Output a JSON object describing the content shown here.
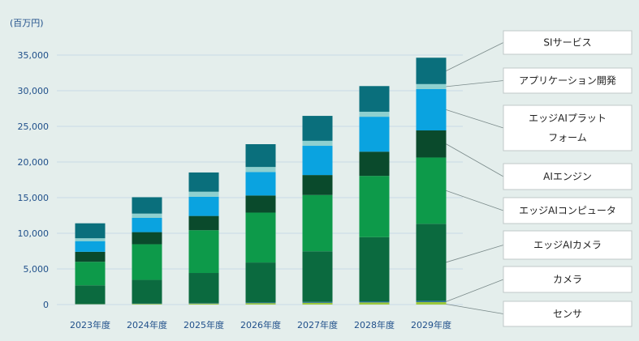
{
  "chart_data": {
    "type": "bar",
    "stacked": true,
    "unit_label": "(百万円)",
    "ylim": [
      0,
      35000
    ],
    "yticks": [
      0,
      5000,
      10000,
      15000,
      20000,
      25000,
      30000,
      35000
    ],
    "ytick_labels": [
      "0",
      "5,000",
      "10,000",
      "15,000",
      "20,000",
      "25,000",
      "30,000",
      "35,000"
    ],
    "categories": [
      "2023年度",
      "2024年度",
      "2025年度",
      "2026年度",
      "2027年度",
      "2028年度",
      "2029年度"
    ],
    "series": [
      {
        "name": "センサ",
        "color": "#9cc83c",
        "values": [
          50,
          100,
          150,
          200,
          250,
          300,
          350
        ]
      },
      {
        "name": "カメラ",
        "color": "#1e6b96",
        "values": [
          50,
          60,
          80,
          100,
          120,
          150,
          180
        ]
      },
      {
        "name": "エッジAIカメラ",
        "color": "#0b6a3f",
        "values": [
          2600,
          3300,
          4200,
          5600,
          7100,
          9000,
          10800
        ]
      },
      {
        "name": "エッジAIコンピュータ",
        "color": "#0d9a4a",
        "values": [
          3300,
          5000,
          6000,
          7000,
          7900,
          8600,
          9300
        ]
      },
      {
        "name": "AIエンジン",
        "color": "#0a4a2c",
        "values": [
          1400,
          1700,
          2000,
          2400,
          2800,
          3400,
          3800
        ]
      },
      {
        "name": "エッジAIプラットフォーム",
        "color": "#0aa3e0",
        "values": [
          1500,
          2000,
          2700,
          3300,
          4100,
          4900,
          5800
        ]
      },
      {
        "name": "アプリケーション開発",
        "color": "#8ed0cf",
        "values": [
          400,
          600,
          700,
          700,
          700,
          700,
          700
        ]
      },
      {
        "name": "SIサービス",
        "color": "#0a6f7c",
        "values": [
          2100,
          2300,
          2700,
          3200,
          3500,
          3600,
          3700
        ]
      }
    ],
    "legend_order_top_to_bottom": [
      "SIサービス",
      "アプリケーション開発",
      "エッジAIプラットフォーム",
      "AIエンジン",
      "エッジAIコンピュータ",
      "エッジAIカメラ",
      "カメラ",
      "センサ"
    ],
    "legend_lines": [
      {
        "name": "SIサービス",
        "lines": [
          "SIサービス"
        ]
      },
      {
        "name": "アプリケーション開発",
        "lines": [
          "アプリケーション開発"
        ]
      },
      {
        "name": "エッジAIプラットフォーム",
        "lines": [
          "エッジAIプラット",
          "フォーム"
        ]
      },
      {
        "name": "AIエンジン",
        "lines": [
          "AIエンジン"
        ]
      },
      {
        "name": "エッジAIコンピュータ",
        "lines": [
          "エッジAIコンピュータ"
        ]
      },
      {
        "name": "エッジAIカメラ",
        "lines": [
          "エッジAIカメラ"
        ]
      },
      {
        "name": "カメラ",
        "lines": [
          "カメラ"
        ]
      },
      {
        "name": "センサ",
        "lines": [
          "センサ"
        ]
      }
    ],
    "grid": true,
    "legend_position": "right"
  }
}
